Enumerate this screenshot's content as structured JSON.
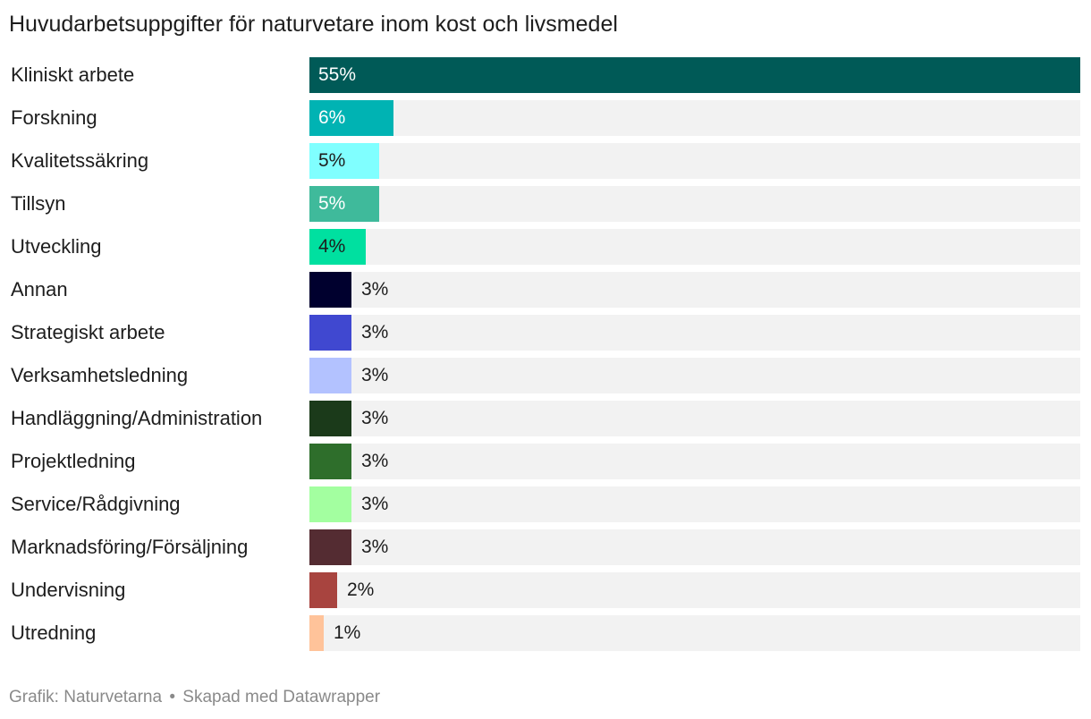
{
  "chart_data": {
    "type": "bar",
    "orientation": "horizontal",
    "title": "Huvudarbetsuppgifter för naturvetare inom kost och livsmedel",
    "xlim": [
      0,
      55
    ],
    "unit": "%",
    "categories": [
      "Kliniskt arbete",
      "Forskning",
      "Kvalitetssäkring",
      "Tillsyn",
      "Utveckling",
      "Annan",
      "Strategiskt arbete",
      "Verksamhetsledning",
      "Handläggning/Administration",
      "Projektledning",
      "Service/Rådgivning",
      "Marknadsföring/Försäljning",
      "Undervisning",
      "Utredning"
    ],
    "values": [
      55,
      6,
      5,
      5,
      4,
      3,
      3,
      3,
      3,
      3,
      3,
      3,
      2,
      1
    ],
    "value_labels": [
      "55%",
      "6%",
      "5%",
      "5%",
      "4%",
      "3%",
      "3%",
      "3%",
      "3%",
      "3%",
      "3%",
      "3%",
      "2%",
      "1%"
    ],
    "colors": [
      "#005a57",
      "#00b3b3",
      "#80ffff",
      "#3fba9b",
      "#00e0a0",
      "#00002e",
      "#4048d0",
      "#b3c2ff",
      "#1b3a1a",
      "#2e6e2b",
      "#a3ffa0",
      "#542c32",
      "#a8443f",
      "#ffc39a"
    ],
    "label_colors": [
      "#ffffff",
      "#ffffff",
      "#1d1d1d",
      "#ffffff",
      "#1d1d1d",
      "#1d1d1d",
      "#1d1d1d",
      "#1d1d1d",
      "#1d1d1d",
      "#1d1d1d",
      "#1d1d1d",
      "#1d1d1d",
      "#1d1d1d",
      "#1d1d1d"
    ],
    "label_inside": [
      true,
      true,
      true,
      true,
      true,
      false,
      false,
      false,
      false,
      false,
      false,
      false,
      false,
      false
    ],
    "background_track_color": "#f2f2f2"
  },
  "footer": {
    "source": "Grafik: Naturvetarna",
    "separator": "•",
    "credit": "Skapad med Datawrapper"
  }
}
